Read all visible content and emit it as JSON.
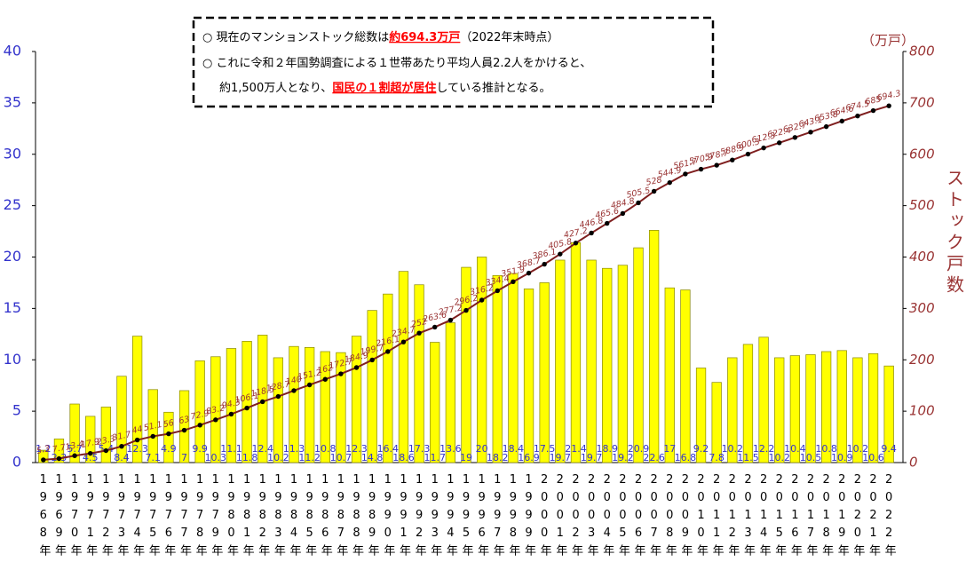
{
  "chart_data": {
    "type": "bar_line",
    "annotation": {
      "lines": [
        [
          "○ 現在のマンションストック総数は",
          "約694.3万戸",
          "（2022年末時点）"
        ],
        [
          "○ これに令和２年国勢調査による１世帯あたり平均人員2.2人をかけると、"
        ],
        [
          "約1,500万人となり、",
          "国民の１割超が居住",
          "している推計となる。"
        ]
      ]
    },
    "y2_label": "ストック戸数",
    "y2_unit": "（万戸）",
    "categories": [
      "1968年",
      "1969年",
      "1970年",
      "1971年",
      "1972年",
      "1973年",
      "1974年",
      "1975年",
      "1976年",
      "1977年",
      "1978年",
      "1979年",
      "1980年",
      "1981年",
      "1982年",
      "1983年",
      "1984年",
      "1985年",
      "1986年",
      "1987年",
      "1988年",
      "1989年",
      "1990年",
      "1991年",
      "1992年",
      "1993年",
      "1994年",
      "1995年",
      "1996年",
      "1997年",
      "1998年",
      "1999年",
      "2000年",
      "2001年",
      "2002年",
      "2003年",
      "2004年",
      "2005年",
      "2006年",
      "2007年",
      "2008年",
      "2009年",
      "2010年",
      "2011年",
      "2012年",
      "2013年",
      "2014年",
      "2015年",
      "2016年",
      "2017年",
      "2018年",
      "2019年",
      "2020年",
      "2021年",
      "2022年"
    ],
    "series": [
      {
        "color": "#ffff00",
        "values": [
          1.2,
          2.3,
          5.7,
          4.5,
          5.4,
          8.4,
          12.3,
          7.1,
          4.9,
          7.0,
          9.9,
          10.3,
          11.1,
          11.8,
          12.4,
          10.2,
          11.3,
          11.2,
          10.8,
          10.7,
          12.3,
          14.8,
          16.4,
          18.6,
          17.3,
          11.7,
          13.6,
          19.0,
          20.0,
          18.2,
          18.4,
          16.9,
          17.5,
          19.7,
          21.4,
          19.7,
          18.9,
          19.2,
          20.9,
          22.6,
          17.0,
          16.8,
          9.2,
          7.8,
          10.2,
          11.5,
          12.2,
          10.2,
          10.4,
          10.5,
          10.8,
          10.9,
          10.2,
          10.6,
          9.4
        ]
      },
      {
        "color": "#7f1f1f",
        "axis": "y2",
        "values": [
          5.3,
          7.7,
          13.4,
          17.9,
          23.3,
          31.7,
          44.0,
          51.1,
          56.0,
          63.0,
          72.9,
          83.2,
          94.3,
          106.1,
          118.5,
          128.7,
          140.0,
          151.2,
          162.0,
          172.7,
          184.9,
          199.7,
          216.1,
          234.7,
          252.0,
          263.6,
          277.2,
          296.2,
          316.2,
          334.4,
          351.9,
          368.7,
          386.1,
          405.8,
          427.2,
          446.8,
          465.6,
          484.8,
          505.5,
          528.0,
          544.9,
          561.7,
          570.9,
          578.7,
          588.9,
          600.3,
          612.3,
          622.4,
          632.7,
          643.1,
          653.8,
          664.6,
          674.5,
          685.0,
          694.3
        ]
      }
    ],
    "ylim": [
      0,
      40
    ],
    "yticks": [
      0,
      5,
      10,
      15,
      20,
      25,
      30,
      35,
      40
    ],
    "y2lim": [
      0,
      800
    ],
    "y2ticks": [
      0,
      100,
      200,
      300,
      400,
      500,
      600,
      700,
      800
    ]
  }
}
